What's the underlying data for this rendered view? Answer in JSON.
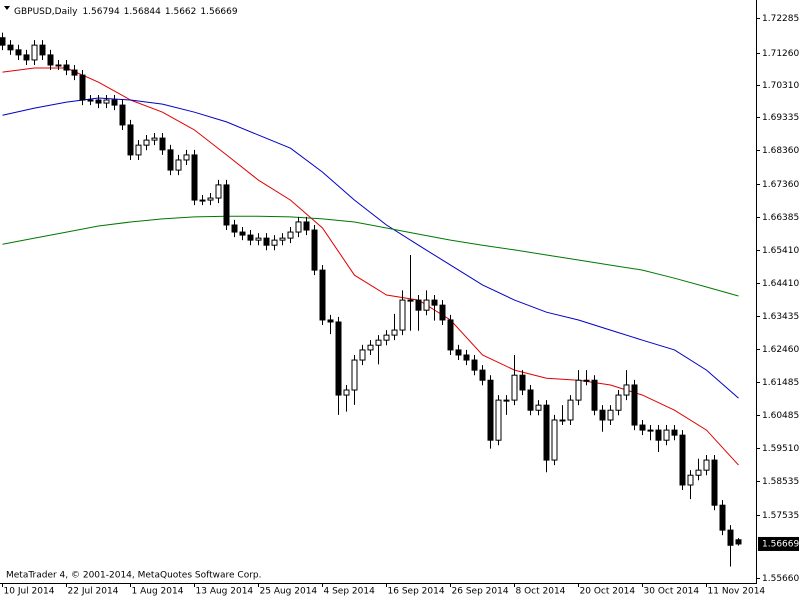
{
  "chart_data": {
    "type": "candlestick",
    "symbol": "GBPUSD,Daily",
    "footer": "MetaTrader 4, © 2001-2014, MetaQuotes Software Corp.",
    "categories": [
      "10 Jul 2014",
      null,
      null,
      null,
      null,
      null,
      null,
      null,
      "22 Jul 2014",
      null,
      null,
      null,
      null,
      null,
      null,
      null,
      "1 Aug 2014",
      null,
      null,
      null,
      null,
      null,
      null,
      null,
      "13 Aug 2014",
      null,
      null,
      null,
      null,
      null,
      null,
      null,
      "25 Aug 2014",
      null,
      null,
      null,
      null,
      null,
      null,
      null,
      "4 Sep 2014",
      null,
      null,
      null,
      null,
      null,
      null,
      null,
      "16 Sep 2014",
      null,
      null,
      null,
      null,
      null,
      null,
      null,
      "26 Sep 2014",
      null,
      null,
      null,
      null,
      null,
      null,
      null,
      "8 Oct 2014",
      null,
      null,
      null,
      null,
      null,
      null,
      null,
      "20 Oct 2014",
      null,
      null,
      null,
      null,
      null,
      null,
      null,
      "30 Oct 2014",
      null,
      null,
      null,
      null,
      null,
      null,
      null,
      "11 Nov 2014",
      null,
      null,
      null,
      null
    ],
    "candles": {
      "open": [
        1.717,
        1.7148,
        1.7134,
        1.7119,
        1.7104,
        1.7148,
        1.7119,
        1.7089,
        1.7089,
        1.7074,
        1.7059,
        1.6985,
        1.6985,
        1.6976,
        1.6985,
        1.697,
        1.6911,
        1.6822,
        1.6851,
        1.6866,
        1.6872,
        1.6837,
        1.6777,
        1.6807,
        1.6822,
        1.6688,
        1.6688,
        1.6694,
        1.6733,
        1.6614,
        1.6593,
        1.6584,
        1.6569,
        1.6575,
        1.6554,
        1.6569,
        1.6575,
        1.6593,
        1.6623,
        1.6599,
        1.648,
        1.6332,
        1.6326,
        1.6109,
        1.6124,
        1.6213,
        1.6243,
        1.6257,
        1.6272,
        1.6287,
        1.6302,
        1.6391,
        1.6391,
        1.6361,
        1.6391,
        1.6376,
        1.6332,
        1.6243,
        1.6228,
        1.6213,
        1.6183,
        1.6153,
        1.5975,
        1.6094,
        1.6094,
        1.6168,
        1.6124,
        1.6064,
        1.6079,
        1.5916,
        1.6035,
        1.6035,
        1.6094,
        1.6153,
        1.6153,
        1.6064,
        1.6035,
        1.6064,
        1.6109,
        1.6139,
        1.602,
        1.6005,
        1.6005,
        1.5975,
        1.6005,
        1.599,
        1.5842,
        1.5871,
        1.5886,
        1.5916,
        1.5782,
        1.5708,
        1.56794
      ],
      "high": [
        1.7185,
        1.7163,
        1.7149,
        1.7134,
        1.7163,
        1.7163,
        1.7134,
        1.7104,
        1.7104,
        1.7089,
        1.7074,
        1.7,
        1.7,
        1.7,
        1.7,
        1.6985,
        1.6926,
        1.6866,
        1.6881,
        1.6887,
        1.6887,
        1.6852,
        1.6822,
        1.6837,
        1.6837,
        1.6703,
        1.6709,
        1.6748,
        1.6748,
        1.6629,
        1.6608,
        1.6599,
        1.659,
        1.659,
        1.6584,
        1.659,
        1.6608,
        1.6638,
        1.6638,
        1.6614,
        1.6495,
        1.6347,
        1.6341,
        1.6139,
        1.6228,
        1.6258,
        1.6272,
        1.6287,
        1.6302,
        1.635,
        1.642,
        1.6525,
        1.6406,
        1.642,
        1.6406,
        1.6391,
        1.6347,
        1.6258,
        1.6243,
        1.6228,
        1.6198,
        1.6168,
        1.6109,
        1.6109,
        1.6228,
        1.6183,
        1.6139,
        1.6094,
        1.6094,
        1.605,
        1.6079,
        1.6109,
        1.6183,
        1.6183,
        1.6168,
        1.6079,
        1.6079,
        1.6124,
        1.6183,
        1.6154,
        1.6035,
        1.602,
        1.602,
        1.602,
        1.602,
        1.6005,
        1.5886,
        1.592,
        1.5931,
        1.5931,
        1.5797,
        1.5723,
        1.56844
      ],
      "low": [
        1.7133,
        1.7119,
        1.7104,
        1.7089,
        1.7089,
        1.7104,
        1.7074,
        1.7074,
        1.7059,
        1.7044,
        1.697,
        1.697,
        1.6961,
        1.6961,
        1.6955,
        1.6896,
        1.6807,
        1.6807,
        1.6836,
        1.6851,
        1.6822,
        1.6762,
        1.6762,
        1.6792,
        1.6673,
        1.6673,
        1.6673,
        1.6679,
        1.6599,
        1.6578,
        1.6569,
        1.6554,
        1.6554,
        1.6539,
        1.6539,
        1.6554,
        1.656,
        1.6578,
        1.6584,
        1.6465,
        1.6317,
        1.629,
        1.605,
        1.606,
        1.608,
        1.6198,
        1.6228,
        1.62,
        1.6257,
        1.6272,
        1.6287,
        1.63,
        1.63,
        1.6346,
        1.633,
        1.6317,
        1.6228,
        1.6213,
        1.6198,
        1.6168,
        1.6138,
        1.595,
        1.596,
        1.605,
        1.6079,
        1.6109,
        1.6049,
        1.6049,
        1.588,
        1.5901,
        1.602,
        1.602,
        1.6079,
        1.6138,
        1.6049,
        1.6,
        1.602,
        1.6049,
        1.6094,
        1.6005,
        1.599,
        1.5975,
        1.594,
        1.596,
        1.5975,
        1.5827,
        1.58,
        1.5856,
        1.5871,
        1.5767,
        1.5693,
        1.56,
        1.5662
      ],
      "close": [
        1.7148,
        1.7134,
        1.7119,
        1.7104,
        1.7148,
        1.7119,
        1.7089,
        1.7089,
        1.7074,
        1.7059,
        1.6985,
        1.6985,
        1.6976,
        1.6985,
        1.697,
        1.6911,
        1.6822,
        1.6851,
        1.6866,
        1.6872,
        1.6837,
        1.6777,
        1.6807,
        1.6822,
        1.6688,
        1.6688,
        1.6694,
        1.6733,
        1.6614,
        1.6593,
        1.6584,
        1.6569,
        1.6575,
        1.6554,
        1.6569,
        1.6575,
        1.6593,
        1.6623,
        1.6599,
        1.648,
        1.6332,
        1.6326,
        1.6109,
        1.6124,
        1.6213,
        1.6243,
        1.6257,
        1.6272,
        1.6287,
        1.6302,
        1.6391,
        1.6391,
        1.6361,
        1.6391,
        1.6376,
        1.6332,
        1.6243,
        1.6228,
        1.6213,
        1.6183,
        1.6153,
        1.5975,
        1.6094,
        1.6094,
        1.6168,
        1.6124,
        1.6064,
        1.6079,
        1.5916,
        1.6035,
        1.6035,
        1.6094,
        1.6153,
        1.6153,
        1.6064,
        1.6035,
        1.6064,
        1.6109,
        1.6139,
        1.602,
        1.6005,
        1.6005,
        1.5975,
        1.6005,
        1.599,
        1.5842,
        1.5871,
        1.5886,
        1.5916,
        1.5782,
        1.5708,
        1.5663,
        1.56669
      ]
    },
    "up_color": "#ffffff",
    "down_color": "#000000",
    "series": [
      {
        "color": "#e00000",
        "x": [
          0,
          4,
          8,
          12,
          16,
          20,
          24,
          28,
          32,
          36,
          40,
          44,
          48,
          52,
          56,
          60,
          64,
          68,
          72,
          76,
          80,
          84,
          88,
          92
        ],
        "values": [
          1.7068,
          1.708,
          1.708,
          1.7038,
          1.6985,
          1.6949,
          1.6896,
          1.6822,
          1.6747,
          1.6688,
          1.6605,
          1.6465,
          1.6406,
          1.6391,
          1.6332,
          1.6228,
          1.6183,
          1.6159,
          1.6153,
          1.6139,
          1.6109,
          1.6064,
          1.6005,
          1.5901
        ]
      },
      {
        "color": "#0000c8",
        "x": [
          0,
          4,
          8,
          12,
          16,
          20,
          24,
          28,
          32,
          36,
          40,
          44,
          48,
          52,
          56,
          60,
          64,
          68,
          72,
          76,
          80,
          84,
          88,
          92
        ],
        "values": [
          1.694,
          1.6961,
          1.6979,
          1.6991,
          1.6985,
          1.6973,
          1.6949,
          1.692,
          1.6881,
          1.6842,
          1.6771,
          1.6688,
          1.6614,
          1.6554,
          1.6495,
          1.6436,
          1.6391,
          1.6355,
          1.6332,
          1.6302,
          1.6272,
          1.6243,
          1.6183,
          1.61
        ]
      },
      {
        "color": "#007800",
        "x": [
          0,
          4,
          8,
          12,
          16,
          20,
          24,
          28,
          32,
          36,
          40,
          44,
          48,
          52,
          56,
          60,
          64,
          68,
          72,
          76,
          80,
          84,
          88,
          92
        ],
        "values": [
          1.6557,
          1.6575,
          1.6593,
          1.6611,
          1.6623,
          1.6632,
          1.6638,
          1.664,
          1.664,
          1.6638,
          1.6632,
          1.6623,
          1.6605,
          1.6587,
          1.6569,
          1.6554,
          1.654,
          1.6525,
          1.651,
          1.6495,
          1.648,
          1.6456,
          1.643,
          1.6403
        ]
      }
    ],
    "ylim": [
      1.5551,
      1.7282
    ],
    "yticks": [
      1.72285,
      {
        "value": 1.7126,
        "label": "1.71260"
      },
      {
        "value": 1.7031,
        "label": "1.70310"
      },
      1.69335,
      {
        "value": 1.6836,
        "label": "1.68360"
      },
      {
        "value": 1.6736,
        "label": "1.67360"
      },
      1.66385,
      {
        "value": 1.6541,
        "label": "1.65410"
      },
      {
        "value": 1.6441,
        "label": "1.64410"
      },
      1.63435,
      {
        "value": 1.6246,
        "label": "1.62460"
      },
      1.61485,
      1.60485,
      {
        "value": 1.5951,
        "label": "1.59510"
      },
      1.58535,
      1.57535,
      {
        "value": 1.5566,
        "label": "1.55660"
      }
    ],
    "grid": false
  }
}
